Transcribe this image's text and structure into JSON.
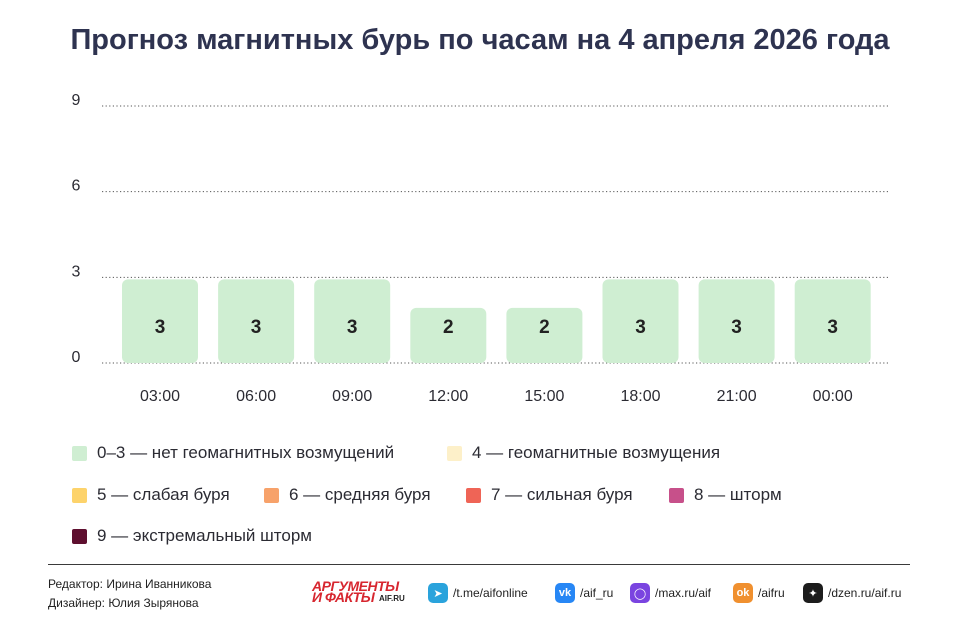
{
  "title": "Прогноз магнитных бурь по часам на 4 апреля 2026 года",
  "chart_data": {
    "type": "bar",
    "title": "Прогноз магнитных бурь по часам на 4 апреля 2026 года",
    "categories": [
      "03:00",
      "06:00",
      "09:00",
      "12:00",
      "15:00",
      "18:00",
      "21:00",
      "00:00"
    ],
    "values": [
      3,
      3,
      3,
      2,
      2,
      3,
      3,
      3
    ],
    "data_labels": [
      "3",
      "3",
      "3",
      "2",
      "2",
      "3",
      "3",
      "3"
    ],
    "y_ticks": [
      0,
      3,
      6,
      9
    ],
    "y_tick_labels": [
      "0",
      "3",
      "6",
      "9"
    ],
    "ylim": [
      0,
      9
    ],
    "grid": "dotted horizontal",
    "bar_color": "#cfeed2",
    "legend_position": "bottom",
    "xlabel": "",
    "ylabel": ""
  },
  "legend": [
    {
      "label": "0–3 — нет геомагнитных возмущений",
      "color": "#cfeed2"
    },
    {
      "label": "4 — геомагнитные возмущения",
      "color": "#fdf0c9"
    },
    {
      "label": "5 — слабая буря",
      "color": "#fdd36b"
    },
    {
      "label": "6 — средняя буря",
      "color": "#f7a26a"
    },
    {
      "label": "7 — сильная буря",
      "color": "#ef6456"
    },
    {
      "label": "8 — шторм",
      "color": "#c7508a"
    },
    {
      "label": "9 — экстремальный шторм",
      "color": "#5e0f2f"
    }
  ],
  "footer": {
    "editor": "Редактор: Ирина Иванникова",
    "designer": "Дизайнер: Юлия Зырянова",
    "brand_line1": "АРГУМЕНТЫ",
    "brand_line2": "И ФАКТЫ",
    "brand_line3": "AIF.RU",
    "socials": [
      {
        "icon": "telegram-icon",
        "text": "/t.me/aifonline",
        "color": "#2aa3dc",
        "glyph": "➤"
      },
      {
        "icon": "vk-icon",
        "text": "/aif_ru",
        "color": "#2787f5",
        "glyph": "vk"
      },
      {
        "icon": "max-icon",
        "text": "/max.ru/aif",
        "color": "#7a44e0",
        "glyph": "◯"
      },
      {
        "icon": "odnoklassniki-icon",
        "text": "/aifru",
        "color": "#f0902f",
        "glyph": "ok"
      },
      {
        "icon": "dzen-icon",
        "text": "/dzen.ru/aif.ru",
        "color": "#1c1c1c",
        "glyph": "✦"
      }
    ]
  }
}
